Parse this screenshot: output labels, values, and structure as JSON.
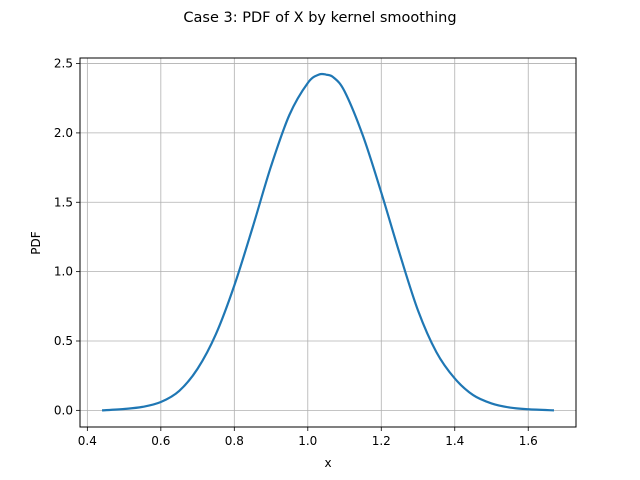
{
  "chart_data": {
    "type": "line",
    "title": "Case 3: PDF of X by kernel smoothing",
    "xlabel": "x",
    "ylabel": "PDF",
    "xlim": [
      0.38,
      1.73
    ],
    "ylim": [
      -0.12,
      2.54
    ],
    "xticks": [
      0.4,
      0.6,
      0.8,
      1.0,
      1.2,
      1.4,
      1.6
    ],
    "xtick_labels": [
      "0.4",
      "0.6",
      "0.8",
      "1.0",
      "1.2",
      "1.4",
      "1.6"
    ],
    "yticks": [
      0.0,
      0.5,
      1.0,
      1.5,
      2.0,
      2.5
    ],
    "ytick_labels": [
      "0.0",
      "0.5",
      "1.0",
      "1.5",
      "2.0",
      "2.5"
    ],
    "grid": true,
    "line_color": "#1f77b4",
    "series": [
      {
        "x": [
          0.44,
          0.5,
          0.55,
          0.6,
          0.65,
          0.7,
          0.75,
          0.8,
          0.85,
          0.9,
          0.95,
          1.0,
          1.03,
          1.05,
          1.07,
          1.1,
          1.15,
          1.2,
          1.25,
          1.3,
          1.35,
          1.4,
          1.45,
          1.5,
          1.55,
          1.6,
          1.67
        ],
        "y": [
          0.0,
          0.01,
          0.025,
          0.06,
          0.14,
          0.3,
          0.55,
          0.9,
          1.32,
          1.76,
          2.13,
          2.36,
          2.42,
          2.42,
          2.4,
          2.3,
          1.98,
          1.57,
          1.13,
          0.72,
          0.42,
          0.23,
          0.11,
          0.05,
          0.02,
          0.008,
          0.0
        ]
      }
    ]
  }
}
